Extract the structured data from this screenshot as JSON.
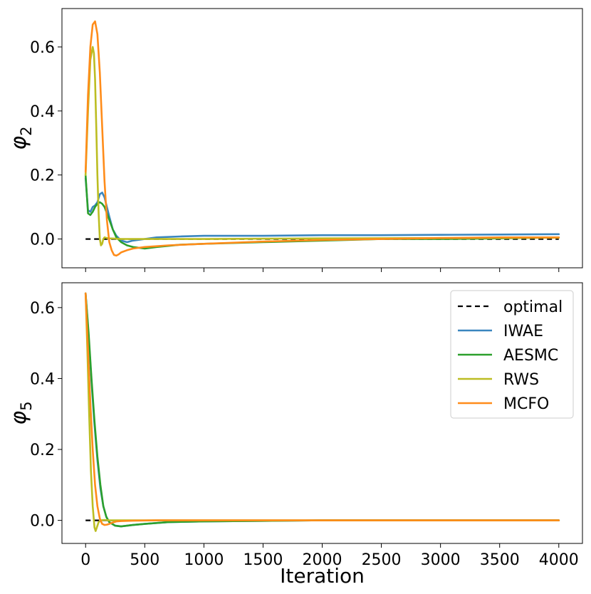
{
  "chart_data": [
    {
      "type": "line",
      "ylabel": "φ",
      "ylabel_sub": "2",
      "xlim": [
        -200,
        4200
      ],
      "ylim": [
        -0.09,
        0.72
      ],
      "xticks": [
        0,
        500,
        1000,
        1500,
        2000,
        2500,
        3000,
        3500,
        4000
      ],
      "show_xticklabels": false,
      "yticks": [
        0.0,
        0.2,
        0.4,
        0.6
      ],
      "ytick_labels": [
        "0.0",
        "0.2",
        "0.4",
        "0.6"
      ],
      "series": [
        {
          "name": "optimal",
          "color": "#000000",
          "dashed": true,
          "x": [
            0,
            4000
          ],
          "y": [
            0.0,
            0.0
          ]
        },
        {
          "name": "IWAE",
          "color": "#3a86bf",
          "dashed": false,
          "x": [
            0,
            20,
            40,
            60,
            80,
            100,
            120,
            140,
            160,
            180,
            200,
            230,
            260,
            300,
            350,
            400,
            500,
            600,
            800,
            1000,
            1500,
            2000,
            2500,
            3000,
            3500,
            4000
          ],
          "y": [
            0.19,
            0.09,
            0.085,
            0.1,
            0.105,
            0.115,
            0.14,
            0.145,
            0.13,
            0.1,
            0.07,
            0.03,
            0.01,
            -0.005,
            -0.01,
            -0.005,
            0.0,
            0.005,
            0.008,
            0.01,
            0.01,
            0.012,
            0.012,
            0.013,
            0.014,
            0.015
          ]
        },
        {
          "name": "AESMC",
          "color": "#2ca02c",
          "dashed": false,
          "x": [
            0,
            20,
            40,
            60,
            80,
            100,
            120,
            140,
            160,
            180,
            200,
            230,
            260,
            300,
            350,
            400,
            500,
            600,
            800,
            1000,
            1500,
            2000,
            2500,
            3000,
            3500,
            4000
          ],
          "y": [
            0.2,
            0.08,
            0.075,
            0.085,
            0.1,
            0.11,
            0.115,
            0.11,
            0.1,
            0.08,
            0.06,
            0.03,
            0.005,
            -0.01,
            -0.02,
            -0.025,
            -0.03,
            -0.025,
            -0.018,
            -0.015,
            -0.01,
            -0.005,
            0.0,
            0.0,
            0.002,
            0.005
          ]
        },
        {
          "name": "RWS",
          "color": "#bcbd22",
          "dashed": false,
          "x": [
            0,
            20,
            40,
            60,
            70,
            80,
            90,
            100,
            110,
            120,
            130,
            140,
            150,
            160,
            180,
            200,
            250,
            300,
            400,
            500,
            1000,
            2000,
            3000,
            4000
          ],
          "y": [
            0.2,
            0.4,
            0.56,
            0.6,
            0.58,
            0.5,
            0.35,
            0.2,
            0.08,
            0.0,
            -0.02,
            -0.015,
            0.0,
            0.005,
            0.003,
            0.002,
            0.001,
            0.0,
            0.0,
            0.0,
            0.0,
            0.002,
            0.003,
            0.004
          ]
        },
        {
          "name": "MCFO",
          "color": "#ff8c1a",
          "dashed": false,
          "x": [
            0,
            20,
            40,
            60,
            80,
            100,
            120,
            140,
            160,
            180,
            200,
            220,
            240,
            260,
            280,
            300,
            350,
            400,
            500,
            700,
            1000,
            1500,
            2000,
            2500,
            3000,
            3500,
            4000
          ],
          "y": [
            0.21,
            0.45,
            0.6,
            0.67,
            0.68,
            0.64,
            0.52,
            0.35,
            0.18,
            0.06,
            -0.01,
            -0.035,
            -0.05,
            -0.052,
            -0.048,
            -0.042,
            -0.035,
            -0.03,
            -0.025,
            -0.02,
            -0.015,
            -0.008,
            -0.003,
            0.0,
            0.003,
            0.005,
            0.005
          ]
        }
      ]
    },
    {
      "type": "line",
      "ylabel": "φ",
      "ylabel_sub": "5",
      "xlabel": "Iteration",
      "xlim": [
        -200,
        4200
      ],
      "ylim": [
        -0.065,
        0.67
      ],
      "xticks": [
        0,
        500,
        1000,
        1500,
        2000,
        2500,
        3000,
        3500,
        4000
      ],
      "xtick_labels": [
        "0",
        "500",
        "1000",
        "1500",
        "2000",
        "2500",
        "3000",
        "3500",
        "4000"
      ],
      "show_xticklabels": true,
      "yticks": [
        0.0,
        0.2,
        0.4,
        0.6
      ],
      "ytick_labels": [
        "0.0",
        "0.2",
        "0.4",
        "0.6"
      ],
      "legend": {
        "position": "upper-right",
        "entries": [
          "optimal",
          "IWAE",
          "AESMC",
          "RWS",
          "MCFO"
        ]
      },
      "series": [
        {
          "name": "optimal",
          "color": "#000000",
          "dashed": true,
          "x": [
            0,
            4000
          ],
          "y": [
            0.0,
            0.0
          ]
        },
        {
          "name": "IWAE",
          "color": "#3a86bf",
          "dashed": false,
          "x": [
            0,
            25,
            50,
            75,
            100,
            125,
            150,
            175,
            200,
            250,
            300,
            400,
            500,
            700,
            1000,
            2000,
            4000
          ],
          "y": [
            0.64,
            0.52,
            0.39,
            0.27,
            0.17,
            0.09,
            0.04,
            0.01,
            -0.005,
            -0.015,
            -0.017,
            -0.013,
            -0.01,
            -0.005,
            -0.003,
            0.0,
            0.0
          ]
        },
        {
          "name": "AESMC",
          "color": "#2ca02c",
          "dashed": false,
          "x": [
            0,
            25,
            50,
            75,
            100,
            125,
            150,
            175,
            200,
            250,
            300,
            400,
            500,
            700,
            1000,
            2000,
            4000
          ],
          "y": [
            0.64,
            0.53,
            0.4,
            0.28,
            0.18,
            0.1,
            0.04,
            0.01,
            -0.005,
            -0.015,
            -0.017,
            -0.013,
            -0.01,
            -0.005,
            -0.003,
            0.0,
            0.0
          ]
        },
        {
          "name": "RWS",
          "color": "#bcbd22",
          "dashed": false,
          "x": [
            0,
            15,
            30,
            45,
            60,
            75,
            85,
            95,
            110,
            130,
            160,
            200,
            300,
            500,
            1000,
            2000,
            4000
          ],
          "y": [
            0.64,
            0.48,
            0.3,
            0.14,
            0.04,
            -0.02,
            -0.03,
            -0.02,
            -0.005,
            0.0,
            0.001,
            0.0,
            0.0,
            0.0,
            0.0,
            0.0,
            0.0
          ]
        },
        {
          "name": "MCFO",
          "color": "#ff8c1a",
          "dashed": false,
          "x": [
            0,
            20,
            40,
            60,
            80,
            100,
            120,
            140,
            160,
            180,
            200,
            230,
            260,
            300,
            400,
            600,
            1000,
            2000,
            4000
          ],
          "y": [
            0.64,
            0.48,
            0.33,
            0.2,
            0.1,
            0.04,
            0.005,
            -0.01,
            -0.013,
            -0.012,
            -0.01,
            -0.006,
            -0.003,
            -0.002,
            -0.001,
            0.0,
            0.0,
            0.0,
            0.0
          ]
        }
      ]
    }
  ]
}
